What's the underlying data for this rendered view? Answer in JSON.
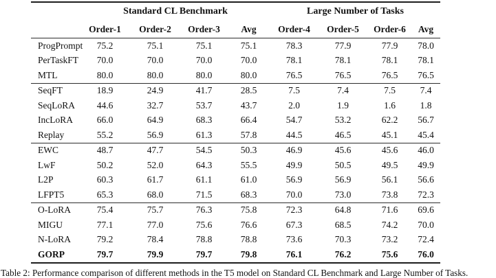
{
  "table": {
    "group_headers": [
      {
        "label": "Standard CL Benchmark"
      },
      {
        "label": "Large Number of Tasks"
      }
    ],
    "columns": [
      "",
      "Order-1",
      "Order-2",
      "Order-3",
      "Avg",
      "Order-4",
      "Order-5",
      "Order-6",
      "Avg"
    ],
    "sections": [
      {
        "rows": [
          {
            "method": "ProgPrompt",
            "bold": false,
            "values": [
              "75.2",
              "75.1",
              "75.1",
              "75.1",
              "78.3",
              "77.9",
              "77.9",
              "78.0"
            ]
          },
          {
            "method": "PerTaskFT",
            "bold": false,
            "values": [
              "70.0",
              "70.0",
              "70.0",
              "70.0",
              "78.1",
              "78.1",
              "78.1",
              "78.1"
            ]
          },
          {
            "method": "MTL",
            "bold": false,
            "values": [
              "80.0",
              "80.0",
              "80.0",
              "80.0",
              "76.5",
              "76.5",
              "76.5",
              "76.5"
            ]
          }
        ]
      },
      {
        "rows": [
          {
            "method": "SeqFT",
            "bold": false,
            "values": [
              "18.9",
              "24.9",
              "41.7",
              "28.5",
              "7.5",
              "7.4",
              "7.5",
              "7.4"
            ]
          },
          {
            "method": "SeqLoRA",
            "bold": false,
            "values": [
              "44.6",
              "32.7",
              "53.7",
              "43.7",
              "2.0",
              "1.9",
              "1.6",
              "1.8"
            ]
          },
          {
            "method": "IncLoRA",
            "bold": false,
            "values": [
              "66.0",
              "64.9",
              "68.3",
              "66.4",
              "54.7",
              "53.2",
              "62.2",
              "56.7"
            ]
          },
          {
            "method": "Replay",
            "bold": false,
            "values": [
              "55.2",
              "56.9",
              "61.3",
              "57.8",
              "44.5",
              "46.5",
              "45.1",
              "45.4"
            ]
          }
        ]
      },
      {
        "rows": [
          {
            "method": "EWC",
            "bold": false,
            "values": [
              "48.7",
              "47.7",
              "54.5",
              "50.3",
              "46.9",
              "45.6",
              "45.6",
              "46.0"
            ]
          },
          {
            "method": "LwF",
            "bold": false,
            "values": [
              "50.2",
              "52.0",
              "64.3",
              "55.5",
              "49.9",
              "50.5",
              "49.5",
              "49.9"
            ]
          },
          {
            "method": "L2P",
            "bold": false,
            "values": [
              "60.3",
              "61.7",
              "61.1",
              "61.0",
              "56.9",
              "56.9",
              "56.1",
              "56.6"
            ]
          },
          {
            "method": "LFPT5",
            "bold": false,
            "values": [
              "65.3",
              "68.0",
              "71.5",
              "68.3",
              "70.0",
              "73.0",
              "73.8",
              "72.3"
            ]
          }
        ]
      },
      {
        "rows": [
          {
            "method": "O-LoRA",
            "bold": false,
            "values": [
              "75.4",
              "75.7",
              "76.3",
              "75.8",
              "72.3",
              "64.8",
              "71.6",
              "69.6"
            ]
          },
          {
            "method": "MIGU",
            "bold": false,
            "values": [
              "77.1",
              "77.0",
              "75.6",
              "76.6",
              "67.3",
              "68.5",
              "74.2",
              "70.0"
            ]
          },
          {
            "method": "N-LoRA",
            "bold": false,
            "values": [
              "79.2",
              "78.4",
              "78.8",
              "78.8",
              "73.6",
              "70.3",
              "73.2",
              "72.4"
            ]
          },
          {
            "method": "GORP",
            "bold": true,
            "values": [
              "79.7",
              "79.9",
              "79.7",
              "79.8",
              "76.1",
              "76.2",
              "75.6",
              "76.0"
            ]
          }
        ]
      }
    ]
  },
  "caption": "Table 2: Performance comparison of different methods in the T5 model on Standard CL Benchmark and Large Number of Tasks."
}
